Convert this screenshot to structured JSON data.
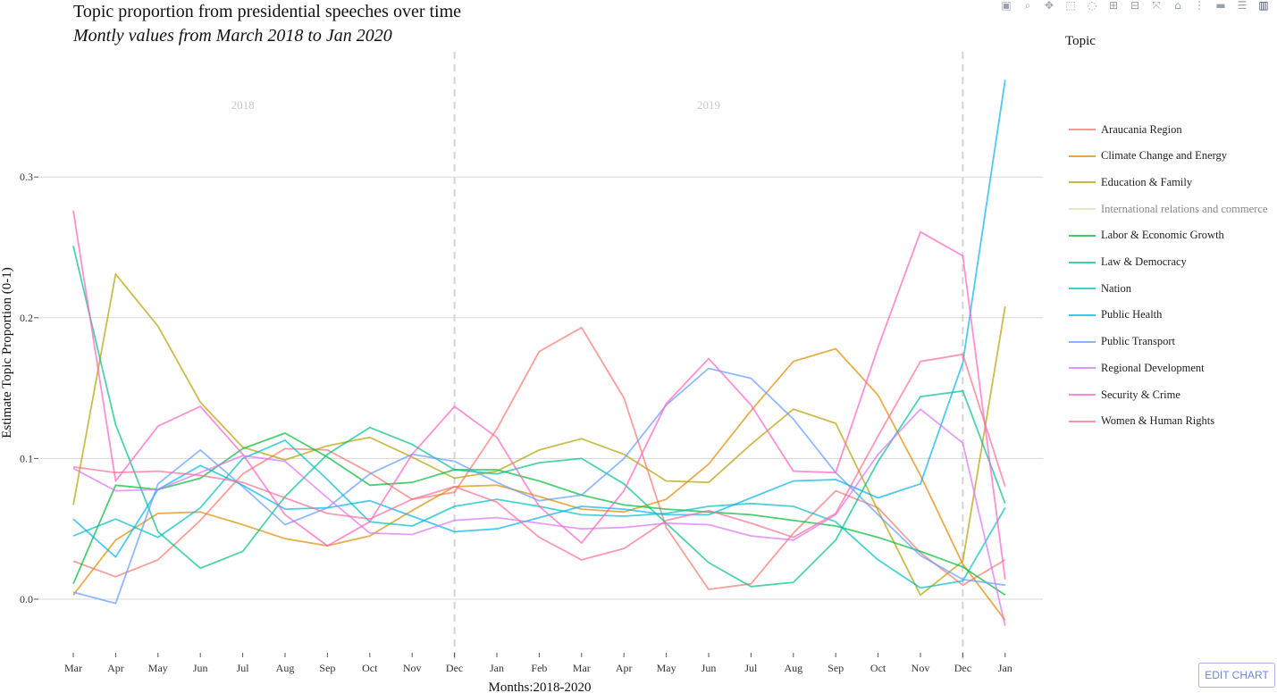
{
  "header": {
    "title": "Topic proportion from presidential speeches over time",
    "subtitle": "Montly values from March 2018 to Jan 2020"
  },
  "legend": {
    "title": "Topic"
  },
  "edit_button": {
    "label": "EDIT CHART"
  },
  "toolbar": [
    "camera-icon",
    "zoom-icon",
    "pan-icon",
    "box-select-icon",
    "lasso-icon",
    "zoom-in-icon",
    "zoom-out-icon",
    "autoscale-icon",
    "reset-axes-icon",
    "spike-icon",
    "compare-hover-icon",
    "closest-hover-icon",
    "plotly-logo-icon"
  ],
  "chart_data": {
    "type": "line",
    "xlabel": "Months:2018-2020",
    "ylabel": "Estimate Topic Proportion (0-1)",
    "categories": [
      "Mar",
      "Apr",
      "May",
      "Jun",
      "Jul",
      "Aug",
      "Sep",
      "Oct",
      "Nov",
      "Dec",
      "Jan",
      "Feb",
      "Mar",
      "Apr",
      "May",
      "Jun",
      "Jul",
      "Aug",
      "Sep",
      "Oct",
      "Nov",
      "Dec",
      "Jan"
    ],
    "ylim": [
      -0.04,
      0.37
    ],
    "yticks": [
      0.0,
      0.1,
      0.2,
      0.3
    ],
    "ytick_labels": [
      "0.0",
      "0.1",
      "0.2",
      "0.3"
    ],
    "facet_labels": [
      {
        "text": "2018",
        "center_index": 4
      },
      {
        "text": "2019",
        "center_index": 15
      }
    ],
    "dividers_at_index": [
      9,
      21
    ],
    "grid": true,
    "legend_position": "right",
    "series": [
      {
        "name": "Araucania Region",
        "color": "#F8766D",
        "values": [
          0.027,
          0.016,
          0.028,
          0.056,
          0.089,
          0.107,
          0.106,
          0.09,
          0.071,
          0.076,
          0.121,
          0.176,
          0.193,
          0.143,
          0.051,
          0.007,
          0.011,
          0.047,
          0.077,
          0.065,
          0.033,
          0.01,
          0.028
        ]
      },
      {
        "name": "Climate Change and Energy",
        "color": "#DE8C00",
        "values": [
          0.003,
          0.042,
          0.061,
          0.062,
          0.053,
          0.043,
          0.038,
          0.045,
          0.063,
          0.08,
          0.081,
          0.073,
          0.064,
          0.062,
          0.071,
          0.096,
          0.134,
          0.169,
          0.178,
          0.145,
          0.088,
          0.025,
          -0.015
        ]
      },
      {
        "name": "Education & Family",
        "color": "#B79F00",
        "values": [
          0.067,
          0.231,
          0.194,
          0.14,
          0.108,
          0.099,
          0.109,
          0.115,
          0.101,
          0.086,
          0.091,
          0.106,
          0.114,
          0.103,
          0.084,
          0.083,
          0.11,
          0.135,
          0.125,
          0.063,
          0.003,
          0.027,
          0.208
        ]
      },
      {
        "name": "International relations and commerce",
        "color": "#C9D18A",
        "values": [
          0.01,
          0.01,
          0.01,
          0.01,
          0.01,
          0.01,
          0.01,
          0.01,
          0.01,
          0.01,
          0.01,
          0.01,
          0.01,
          0.01,
          0.01,
          0.01,
          0.01,
          0.01,
          0.01,
          0.01,
          0.01,
          0.01,
          0.01
        ]
      },
      {
        "name": "Labor & Economic Growth",
        "color": "#00BA38",
        "values": [
          0.011,
          0.081,
          0.078,
          0.086,
          0.107,
          0.118,
          0.101,
          0.081,
          0.083,
          0.092,
          0.092,
          0.084,
          0.074,
          0.067,
          0.064,
          0.062,
          0.06,
          0.056,
          0.052,
          0.044,
          0.034,
          0.023,
          0.003
        ]
      },
      {
        "name": "Law & Democracy",
        "color": "#00C08B",
        "values": [
          0.251,
          0.124,
          0.048,
          0.022,
          0.034,
          0.073,
          0.103,
          0.122,
          0.11,
          0.092,
          0.089,
          0.097,
          0.1,
          0.082,
          0.054,
          0.026,
          0.009,
          0.012,
          0.042,
          0.098,
          0.144,
          0.148,
          0.068
        ]
      },
      {
        "name": "Nation",
        "color": "#00BFC4",
        "values": [
          0.045,
          0.057,
          0.044,
          0.065,
          0.1,
          0.113,
          0.085,
          0.055,
          0.052,
          0.066,
          0.071,
          0.066,
          0.06,
          0.059,
          0.061,
          0.066,
          0.068,
          0.066,
          0.055,
          0.028,
          0.008,
          0.013,
          0.065
        ]
      },
      {
        "name": "Public Health",
        "color": "#00B4F0",
        "values": [
          0.057,
          0.03,
          0.078,
          0.095,
          0.081,
          0.064,
          0.065,
          0.07,
          0.059,
          0.048,
          0.05,
          0.058,
          0.066,
          0.064,
          0.06,
          0.06,
          0.072,
          0.084,
          0.085,
          0.072,
          0.082,
          0.168,
          0.369
        ]
      },
      {
        "name": "Public Transport",
        "color": "#619CFF",
        "values": [
          0.005,
          -0.003,
          0.082,
          0.106,
          0.08,
          0.053,
          0.065,
          0.089,
          0.103,
          0.098,
          0.083,
          0.07,
          0.074,
          0.1,
          0.138,
          0.164,
          0.157,
          0.128,
          0.09,
          0.06,
          0.031,
          0.014,
          0.01
        ]
      },
      {
        "name": "Regional Development",
        "color": "#DB72FB",
        "values": [
          0.093,
          0.077,
          0.078,
          0.09,
          0.102,
          0.098,
          0.072,
          0.047,
          0.046,
          0.056,
          0.058,
          0.054,
          0.05,
          0.051,
          0.054,
          0.053,
          0.045,
          0.042,
          0.06,
          0.103,
          0.135,
          0.111,
          -0.019
        ]
      },
      {
        "name": "Security & Crime",
        "color": "#FF61C3",
        "values": [
          0.276,
          0.084,
          0.123,
          0.137,
          0.103,
          0.06,
          0.038,
          0.055,
          0.103,
          0.137,
          0.115,
          0.066,
          0.04,
          0.077,
          0.139,
          0.171,
          0.138,
          0.091,
          0.09,
          0.179,
          0.261,
          0.244,
          0.014
        ]
      },
      {
        "name": "Women & Human Rights",
        "color": "#FF6C91",
        "values": [
          0.094,
          0.09,
          0.091,
          0.088,
          0.083,
          0.072,
          0.061,
          0.057,
          0.071,
          0.08,
          0.069,
          0.044,
          0.028,
          0.036,
          0.056,
          0.063,
          0.054,
          0.044,
          0.061,
          0.116,
          0.169,
          0.174,
          0.08
        ]
      }
    ]
  }
}
